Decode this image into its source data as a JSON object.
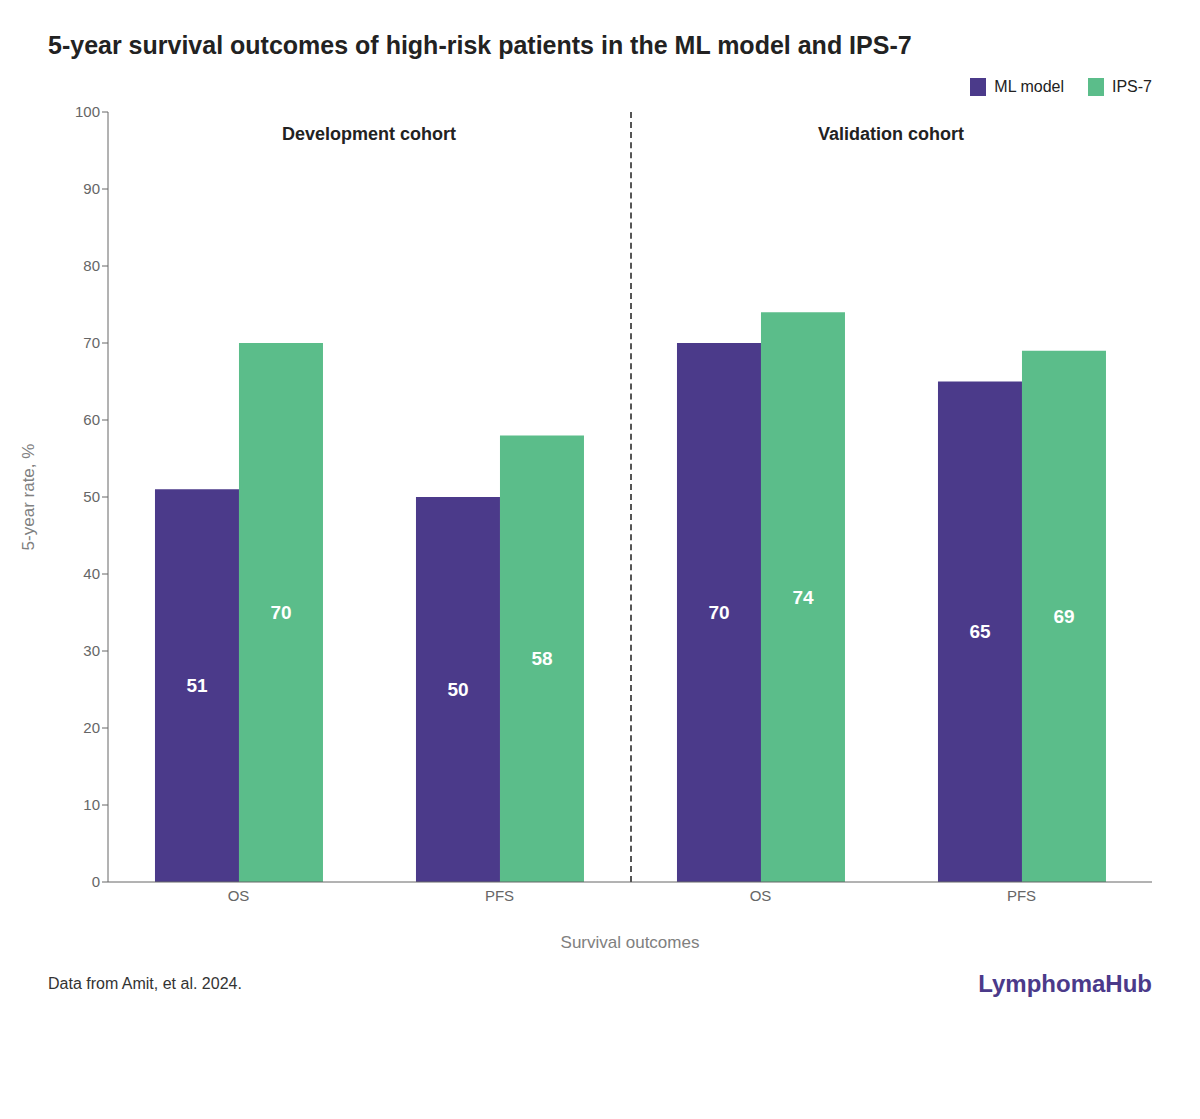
{
  "chart_data": {
    "type": "bar",
    "title": "5-year survival outcomes of high-risk patients in the ML model and IPS-7",
    "x_label": "Survival outcomes",
    "y_label": "5-year rate, %",
    "categories": [
      "OS",
      "PFS",
      "OS",
      "PFS"
    ],
    "series": [
      {
        "name": "ML model",
        "color": "#4B3A8A",
        "values": [
          51,
          50,
          70,
          65
        ]
      },
      {
        "name": "IPS-7",
        "color": "#5BBD8A",
        "values": [
          70,
          58,
          74,
          69
        ]
      }
    ],
    "ylim": [
      0,
      100
    ],
    "yticks": [
      0,
      10,
      20,
      30,
      40,
      50,
      60,
      70,
      80,
      90,
      100
    ],
    "grid": false,
    "legend": "upper right",
    "data_labels": true,
    "annotations": [
      "Development cohort",
      "Validation cohort"
    ],
    "footer": "Data from Amit, et al. 2024.",
    "logo": "LymphomaHub"
  }
}
